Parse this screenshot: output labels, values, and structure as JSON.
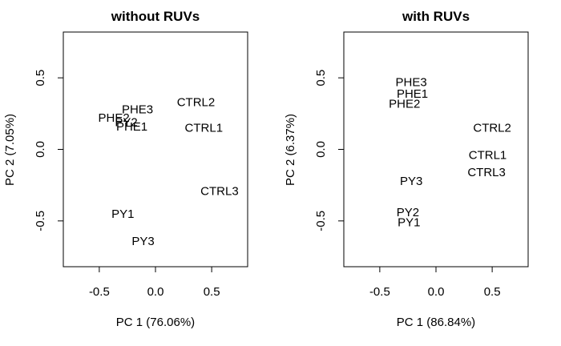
{
  "chart_data": [
    {
      "type": "scatter",
      "title": "without RUVs",
      "xlabel": "PC 1 (76.06%)",
      "ylabel": "PC 2 (7.05%)",
      "xlim": [
        -0.82,
        0.82
      ],
      "ylim": [
        -0.82,
        0.82
      ],
      "xticks": [
        -0.5,
        0.0,
        0.5
      ],
      "yticks": [
        -0.5,
        0.0,
        0.5
      ],
      "xtick_labels": [
        "-0.5",
        "0.0",
        "0.5"
      ],
      "ytick_labels": [
        "-0.5",
        "0.0",
        "0.5"
      ],
      "points": [
        {
          "label": "CTRL2",
          "x": 0.36,
          "y": 0.33
        },
        {
          "label": "PHE3",
          "x": -0.16,
          "y": 0.28
        },
        {
          "label": "PHE2",
          "x": -0.37,
          "y": 0.22
        },
        {
          "label": "PY2",
          "x": -0.26,
          "y": 0.19
        },
        {
          "label": "PHE1",
          "x": -0.21,
          "y": 0.16
        },
        {
          "label": "CTRL1",
          "x": 0.43,
          "y": 0.15
        },
        {
          "label": "CTRL3",
          "x": 0.57,
          "y": -0.29
        },
        {
          "label": "PY1",
          "x": -0.29,
          "y": -0.45
        },
        {
          "label": "PY3",
          "x": -0.11,
          "y": -0.64
        }
      ]
    },
    {
      "type": "scatter",
      "title": "with RUVs",
      "xlabel": "PC 1 (86.84%)",
      "ylabel": "PC 2 (6.37%)",
      "xlim": [
        -0.82,
        0.82
      ],
      "ylim": [
        -0.82,
        0.82
      ],
      "xticks": [
        -0.5,
        0.0,
        0.5
      ],
      "yticks": [
        -0.5,
        0.0,
        0.5
      ],
      "xtick_labels": [
        "-0.5",
        "0.0",
        "0.5"
      ],
      "ytick_labels": [
        "-0.5",
        "0.0",
        "0.5"
      ],
      "points": [
        {
          "label": "PHE3",
          "x": -0.22,
          "y": 0.47
        },
        {
          "label": "PHE1",
          "x": -0.21,
          "y": 0.39
        },
        {
          "label": "PHE2",
          "x": -0.28,
          "y": 0.32
        },
        {
          "label": "CTRL2",
          "x": 0.5,
          "y": 0.15
        },
        {
          "label": "CTRL1",
          "x": 0.46,
          "y": -0.04
        },
        {
          "label": "CTRL3",
          "x": 0.45,
          "y": -0.16
        },
        {
          "label": "PY3",
          "x": -0.22,
          "y": -0.22
        },
        {
          "label": "PY2",
          "x": -0.25,
          "y": -0.44
        },
        {
          "label": "PY1",
          "x": -0.24,
          "y": -0.51
        }
      ]
    }
  ]
}
